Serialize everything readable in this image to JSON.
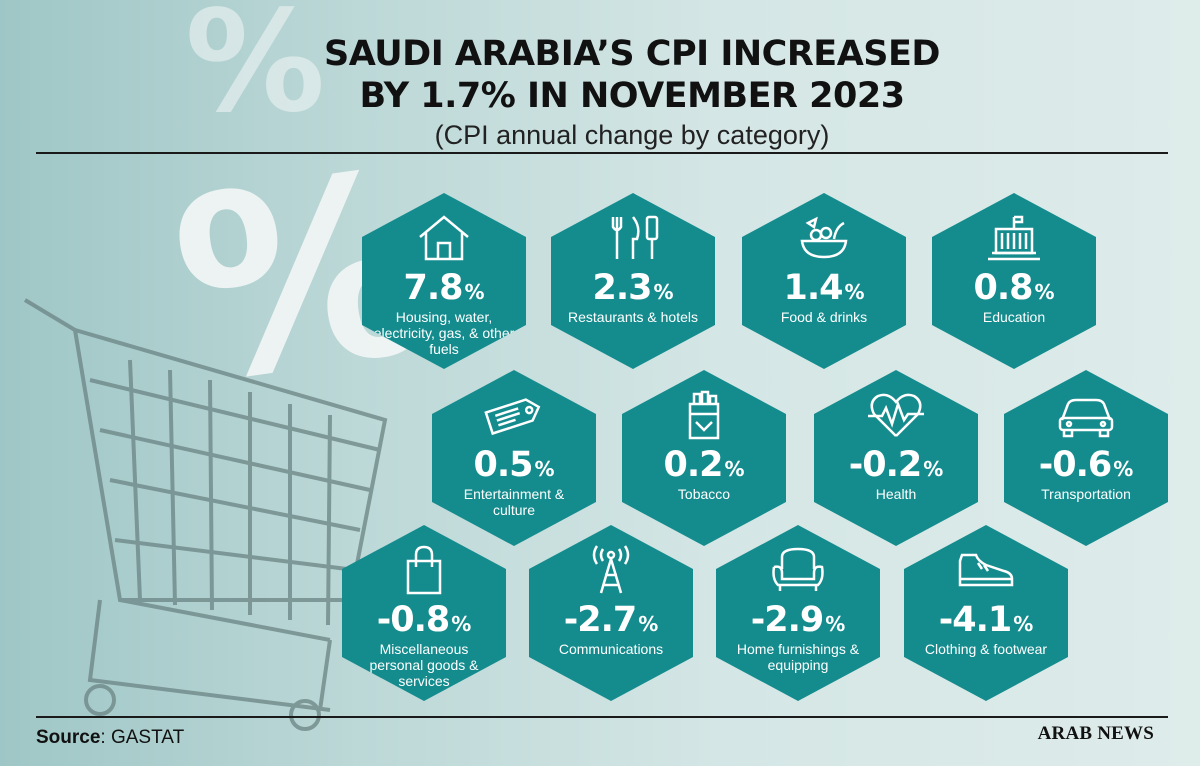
{
  "header": {
    "title": "SAUDI ARABIA’S CPI INCREASED\nBY 1.7% IN NOVEMBER 2023",
    "subtitle": "(CPI annual change by category)"
  },
  "categories": [
    {
      "value": "7.8",
      "unit": "%",
      "label": "Housing, water, electricity, gas, & other fuels",
      "icon": "house-icon"
    },
    {
      "value": "2.3",
      "unit": "%",
      "label": "Restaurants & hotels",
      "icon": "cutlery-icon"
    },
    {
      "value": "1.4",
      "unit": "%",
      "label": "Food & drinks",
      "icon": "food-bowl-icon"
    },
    {
      "value": "0.8",
      "unit": "%",
      "label": "Education",
      "icon": "school-icon"
    },
    {
      "value": "0.5",
      "unit": "%",
      "label": "Entertainment & culture",
      "icon": "ticket-icon"
    },
    {
      "value": "0.2",
      "unit": "%",
      "label": "Tobacco",
      "icon": "cigarette-pack-icon"
    },
    {
      "value": "-0.2",
      "unit": "%",
      "label": "Health",
      "icon": "heartbeat-icon"
    },
    {
      "value": "-0.6",
      "unit": "%",
      "label": "Transportation",
      "icon": "car-icon"
    },
    {
      "value": "-0.8",
      "unit": "%",
      "label": "Miscellaneous personal goods & services",
      "icon": "shopping-bag-icon"
    },
    {
      "value": "-2.7",
      "unit": "%",
      "label": "Communications",
      "icon": "antenna-tower-icon"
    },
    {
      "value": "-2.9",
      "unit": "%",
      "label": "Home furnishings & equipping",
      "icon": "armchair-icon"
    },
    {
      "value": "-4.1",
      "unit": "%",
      "label": "Clothing & footwear",
      "icon": "shoe-icon"
    }
  ],
  "footer": {
    "source_label": "Source",
    "source_value": ": GASTAT",
    "brand": "ARAB NEWS"
  },
  "colors": {
    "hexagon": "#148c8e",
    "background": "#c6dedd",
    "text": "#111111"
  }
}
